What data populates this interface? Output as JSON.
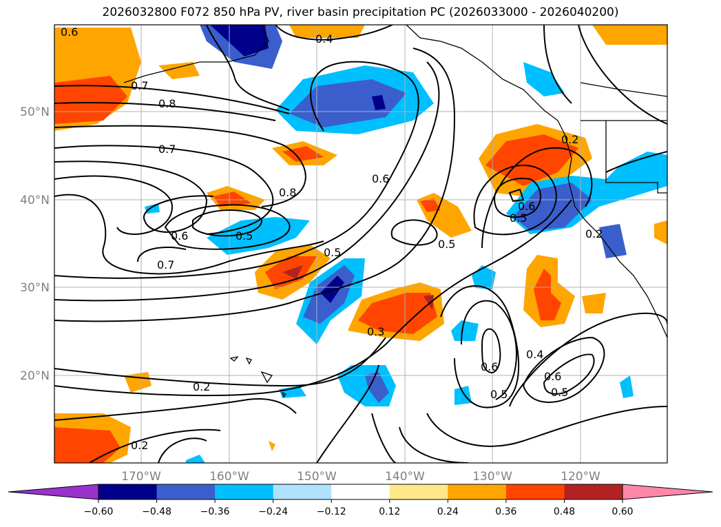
{
  "title": "2026032800 F072 850 hPa PV, river basin precipitation PC (2026033000 - 2026040200)",
  "map": {
    "lat_labels": [
      "50°N",
      "40°N",
      "30°N",
      "20°N"
    ],
    "lon_labels": [
      "170°W",
      "160°W",
      "150°W",
      "140°W",
      "130°W",
      "120°W"
    ],
    "contour_labels": [
      "0.6",
      "0.4",
      "0.7",
      "0.8",
      "0.7",
      "0.6",
      "0.8",
      "0.5",
      "0.6",
      "0.7",
      "0.5",
      "0.5",
      "0.3",
      "0.6",
      "0.4",
      "0.5",
      "0.5",
      "0.6",
      "0.2",
      "0.2",
      "0.6",
      "0.5",
      "0.2",
      "0.2"
    ]
  },
  "colorbar": {
    "ticks": [
      "−0.60",
      "−0.48",
      "−0.36",
      "−0.24",
      "−0.12",
      "0.12",
      "0.24",
      "0.36",
      "0.48",
      "0.60"
    ],
    "colors": [
      "#9933cc",
      "#00008b",
      "#3a5fcd",
      "#00bfff",
      "#b0e2ff",
      "#ffffff",
      "#ffe88a",
      "#ffa500",
      "#ff4500",
      "#b22222",
      "#ff88aa"
    ]
  }
}
